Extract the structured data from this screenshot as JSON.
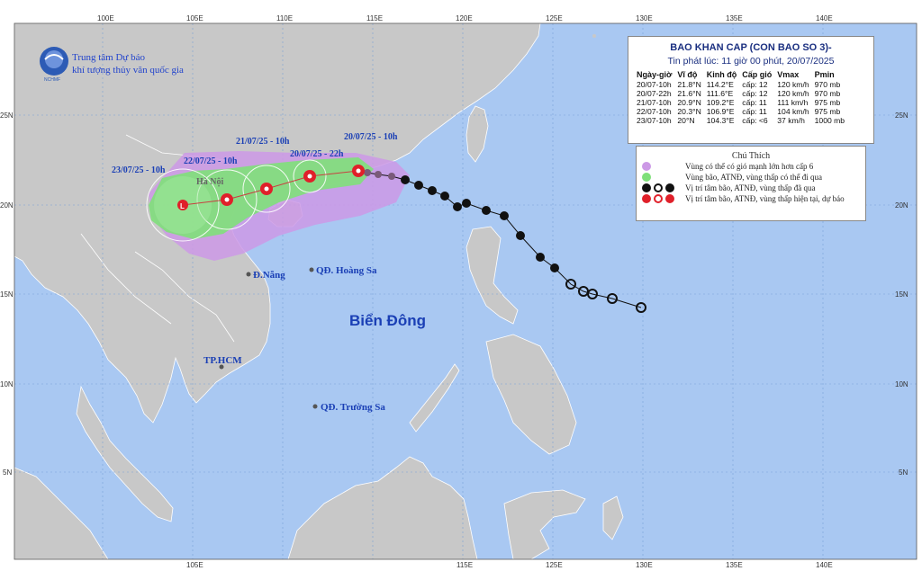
{
  "agency": {
    "line1": "Trung tâm Dự báo",
    "line2": "khí tượng thủy văn quốc gia",
    "logo_text": "NCHMF"
  },
  "grid": {
    "lon_top": [
      "100E",
      "105E",
      "110E",
      "115E",
      "120E",
      "125E",
      "130E",
      "135E",
      "140E"
    ],
    "lon_bottom": [
      "105E",
      "115E",
      "125E",
      "130E",
      "135E",
      "140E"
    ],
    "lat_right": [
      "25N",
      "20N",
      "15N",
      "10N",
      "5N"
    ],
    "lat_left": [
      "25N",
      "20N",
      "15N",
      "10N",
      "5N"
    ]
  },
  "places": {
    "hanoi": "Hà Nội",
    "danang": "Đ.Nẵng",
    "hoangsa": "QĐ. Hoàng Sa",
    "hcm": "TP.HCM",
    "truongsa": "QĐ. Trường Sa",
    "sea": "Biển Đông"
  },
  "track_labels": {
    "t1": "20/07/25 - 10h",
    "t2": "20/07/25 - 22h",
    "t3": "21/07/25 - 10h",
    "t4": "22/07/25 - 10h",
    "t5": "23/07/25 - 10h"
  },
  "info": {
    "title": "BAO KHAN CAP (CON BAO SO 3)-",
    "subtitle": "Tin phát lúc: 11 giờ 00 phút, 20/07/2025",
    "headers": [
      "Ngày-giờ",
      "Vĩ độ",
      "Kinh độ",
      "Cấp gió",
      "Vmax",
      "Pmin"
    ],
    "rows": [
      [
        "20/07-10h",
        "21.8°N",
        "114.2°E",
        "cấp: 12",
        "120 km/h",
        "970 mb"
      ],
      [
        "20/07-22h",
        "21.6°N",
        "111.6°E",
        "cấp: 12",
        "120 km/h",
        "970 mb"
      ],
      [
        "21/07-10h",
        "20.9°N",
        "109.2°E",
        "cấp: 11",
        "111 km/h",
        "975 mb"
      ],
      [
        "22/07-10h",
        "20.3°N",
        "106.9°E",
        "cấp: 11",
        "104 km/h",
        "975 mb"
      ],
      [
        "23/07-10h",
        "20°N",
        "104.3°E",
        "cấp: <6",
        "37 km/h",
        "1000 mb"
      ]
    ]
  },
  "legend": {
    "title": "Chú Thích",
    "items": [
      "Vùng có thể có gió mạnh lớn hơn cấp 6",
      "Vùng bão, ATNĐ, vùng thấp có thể đi qua",
      "Vị trí tâm bão, ATNĐ, vùng thấp đã qua",
      "Vị trí tâm bão, ATNĐ, vùng thấp hiện tại, dự báo"
    ],
    "colors": {
      "wind_zone": "#cc99e6",
      "storm_zone": "#7fe07a",
      "past": "#111111",
      "forecast": "#e0202a"
    }
  },
  "colors": {
    "ocean": "#a9c8f2",
    "land": "#c8c8c8",
    "border": "#ffffff"
  }
}
